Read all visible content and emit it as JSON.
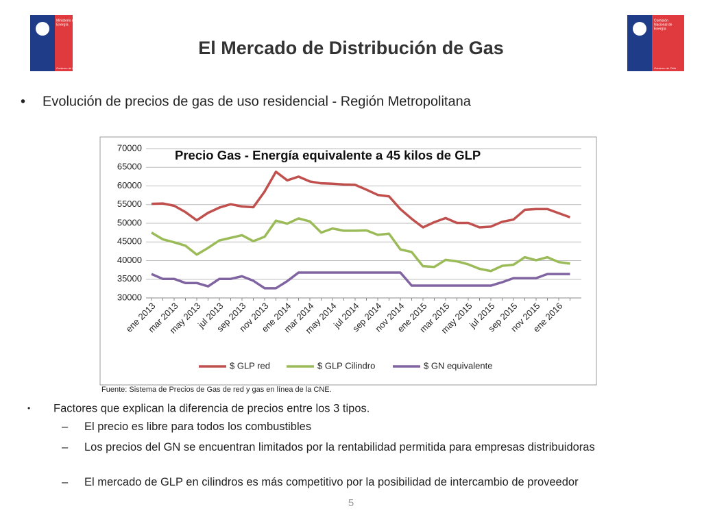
{
  "header": {
    "title": "El Mercado de Distribución de Gas",
    "logos": [
      {
        "lines": [
          "Ministerio de",
          "Energía"
        ],
        "footer": "Gobierno de Chile"
      },
      {
        "lines": [
          "Comisión",
          "Nacional de",
          "Energía"
        ],
        "footer": "Gobierno de Chile"
      }
    ]
  },
  "bullet": "Evolución de precios de gas de uso residencial - Región Metropolitana",
  "chart_data": {
    "type": "line",
    "title": "Precio Gas - Energía equivalente a 45 kilos de GLP",
    "categories": [
      "ene 2013",
      null,
      "mar 2013",
      null,
      "may 2013",
      null,
      "jul 2013",
      null,
      "sep 2013",
      null,
      "nov 2013",
      null,
      "ene 2014",
      null,
      "mar 2014",
      null,
      "may 2014",
      null,
      "jul 2014",
      null,
      "sep 2014",
      null,
      "nov 2014",
      null,
      "ene 2015",
      null,
      "mar 2015",
      null,
      "may 2015",
      null,
      "jul 2015",
      null,
      "sep 2015",
      null,
      "nov 2015",
      null,
      "ene 2016",
      null
    ],
    "series": [
      {
        "name": "$ GLP red",
        "color": "#c0504d",
        "values": [
          55200,
          55300,
          54700,
          53000,
          50800,
          52800,
          54200,
          55100,
          54500,
          54300,
          58500,
          63800,
          61500,
          62500,
          61200,
          60700,
          60600,
          60400,
          60300,
          59000,
          57600,
          57200,
          53800,
          51200,
          48900,
          50300,
          51400,
          50100,
          50100,
          48900,
          49100,
          50400,
          51000,
          53600,
          53800,
          53800,
          52700,
          51600
        ]
      },
      {
        "name": "$ GLP Cilindro",
        "color": "#9bbb59",
        "values": [
          47500,
          45700,
          44900,
          44000,
          41600,
          43400,
          45400,
          46100,
          46800,
          45200,
          46400,
          50700,
          49900,
          51300,
          50500,
          47500,
          48600,
          48000,
          48000,
          48100,
          46900,
          47200,
          43000,
          42300,
          38500,
          38300,
          40200,
          39800,
          39000,
          37800,
          37200,
          38600,
          38900,
          40900,
          40100,
          40900,
          39600,
          39200
        ]
      },
      {
        "name": "$ GN equivalente",
        "color": "#8064a2",
        "values": [
          36400,
          35100,
          35100,
          34000,
          34000,
          33100,
          35100,
          35100,
          35800,
          34600,
          32600,
          32600,
          34500,
          36800,
          36800,
          36800,
          36800,
          36800,
          36800,
          36800,
          36800,
          36800,
          36800,
          33300,
          33300,
          33300,
          33300,
          33300,
          33300,
          33300,
          33300,
          34200,
          35300,
          35300,
          35300,
          36400,
          36400,
          36400
        ]
      }
    ],
    "ylim": [
      30000,
      70000
    ],
    "yticks": [
      30000,
      35000,
      40000,
      45000,
      50000,
      55000,
      60000,
      65000,
      70000
    ],
    "grid": true,
    "legend": "bottom"
  },
  "source": "Fuente: Sistema de Precios de Gas de red y gas en línea de la CNE.",
  "factors": {
    "text": "Factores que explican la diferencia de precios entre los 3 tipos.",
    "items": [
      "El precio es libre para todos los combustibles",
      "Los precios del GN se encuentran limitados por la rentabilidad permitida para empresas distribuidoras",
      "El mercado de GLP en cilindros es más competitivo por la posibilidad de intercambio de proveedor"
    ]
  },
  "page_number": "5"
}
